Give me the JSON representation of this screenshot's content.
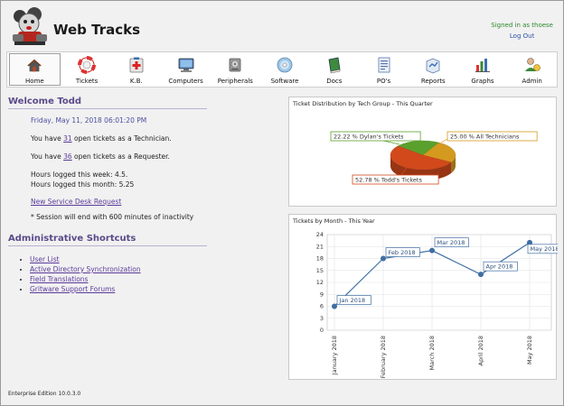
{
  "app": {
    "title": "Web Tracks"
  },
  "header": {
    "signed_in": "Signed in as thoese",
    "logout": "Log Out"
  },
  "nav": [
    {
      "label": "Home",
      "icon": "home-icon"
    },
    {
      "label": "Tickets",
      "icon": "lifebuoy-icon"
    },
    {
      "label": "K.B.",
      "icon": "first-aid-icon"
    },
    {
      "label": "Computers",
      "icon": "monitor-icon"
    },
    {
      "label": "Peripherals",
      "icon": "drive-icon"
    },
    {
      "label": "Software",
      "icon": "disc-icon"
    },
    {
      "label": "Docs",
      "icon": "book-icon"
    },
    {
      "label": "PO's",
      "icon": "form-icon"
    },
    {
      "label": "Reports",
      "icon": "report-icon"
    },
    {
      "label": "Graphs",
      "icon": "graph-icon"
    },
    {
      "label": "Admin",
      "icon": "admin-icon"
    }
  ],
  "welcome": {
    "heading": "Welcome Todd",
    "date": "Friday, May 11, 2018 06:01:20 PM",
    "tech_prefix": "You have ",
    "tech_count": "31",
    "tech_suffix": " open tickets as a Technician.",
    "req_prefix": "You have ",
    "req_count": "36",
    "req_suffix": " open tickets as a Requester.",
    "hours_week": "Hours logged this week: 4.5.",
    "hours_month": "Hours logged this month: 5.25",
    "new_request": "New Service Desk Request",
    "session": "* Session will end with 600 minutes of inactivity"
  },
  "admin": {
    "heading": "Administrative Shortcuts",
    "links": [
      "User List",
      "Active Directory Synchronization",
      "Field Translations",
      "Gritware Support Forums"
    ]
  },
  "footer": {
    "edition": "Enterprise Edition 10.0.3.0"
  },
  "chart_data": [
    {
      "type": "pie",
      "title": "Ticket Distribution by Tech Group - This Quarter",
      "categories": [
        "Dylan's Tickets",
        "All Technicians",
        "Todd's Tickets"
      ],
      "values": [
        22.22,
        25.0,
        52.78
      ],
      "labels": [
        "22.22 % Dylan's Tickets",
        "25.00 % All Technicians",
        "52.78 % Todd's Tickets"
      ],
      "colors": [
        "#5aa02c",
        "#d49a1f",
        "#d2491c"
      ]
    },
    {
      "type": "line",
      "title": "Tickets by Month - This Year",
      "categories": [
        "January 2018",
        "February 2018",
        "March 2018",
        "April 2018",
        "May 2018"
      ],
      "point_labels": [
        "Jan 2018",
        "Feb 2018",
        "Mar 2018",
        "Apr 2018",
        "May 2018"
      ],
      "values": [
        6,
        18,
        20,
        14,
        22
      ],
      "ylim": [
        0,
        24
      ],
      "yticks": [
        "0",
        "3",
        "6",
        "9",
        "12",
        "15",
        "18",
        "21",
        "24"
      ],
      "grid": true,
      "color": "#3f6ea3"
    }
  ]
}
